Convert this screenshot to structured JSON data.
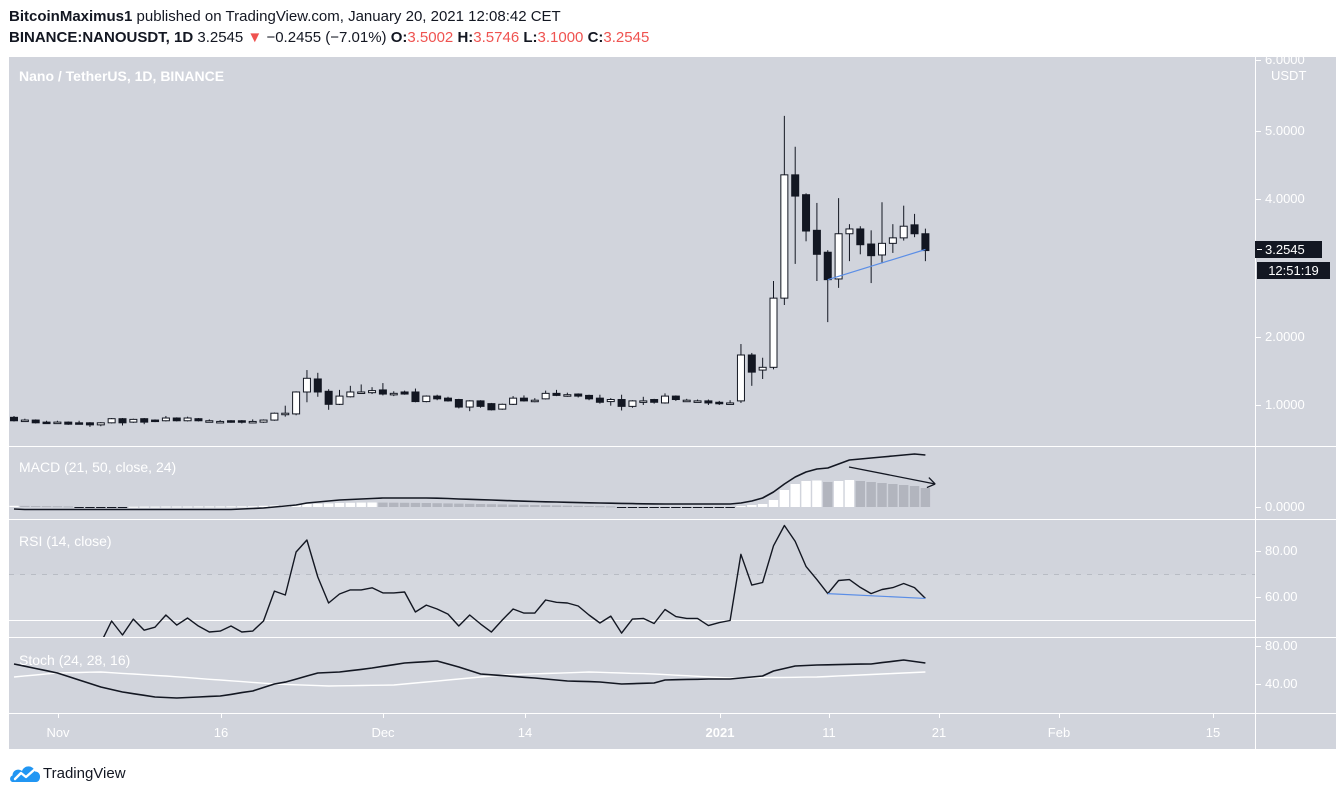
{
  "header": {
    "author": "BitcoinMaximus1",
    "published_text": "published on TradingView.com, January 20, 2021 12:08:42 CET",
    "symbol": "BINANCE:NANOUSDT, 1D",
    "last": "3.2545",
    "change_arrow": "▼",
    "change": "−0.2455 (−7.01%)",
    "ohlc": [
      {
        "label": "O:",
        "value": "3.5002"
      },
      {
        "label": "H:",
        "value": "3.5746"
      },
      {
        "label": "L:",
        "value": "3.1000"
      },
      {
        "label": "C:",
        "value": "3.2545"
      }
    ]
  },
  "chart": {
    "title": "Nano / TetherUS, 1D, BINANCE",
    "macd_title": "MACD (21, 50, close, 24)",
    "rsi_title": "RSI (14, close)",
    "stoch_title": "Stoch (24, 28, 16)",
    "price_axis": {
      "unit": "USDT",
      "ticks": [
        "6.0000",
        "5.0000",
        "4.0000",
        "2.0000",
        "1.0000"
      ],
      "last_price": "3.2545",
      "countdown": "12:51:19"
    },
    "macd_axis": {
      "ticks": [
        "0.0000"
      ]
    },
    "rsi_axis": {
      "ticks": [
        "80.00",
        "60.00"
      ]
    },
    "stoch_axis": {
      "ticks": [
        "80.00",
        "40.00"
      ]
    },
    "time_axis": [
      "Nov",
      "16",
      "Dec",
      "14",
      "2021",
      "11",
      "21",
      "Feb",
      "15"
    ]
  },
  "footer": {
    "brand": "TradingView"
  },
  "colors": {
    "background": "#d1d4dc",
    "candle_dark": "#131722",
    "candle_light": "#ffffff",
    "down": "#ef5350",
    "trendline_blue": "#5b8ee6",
    "logo_blue": "#2196f3"
  },
  "chart_data": {
    "type": "candlestick",
    "title": "Nano / TetherUS, 1D, BINANCE",
    "xlabel": "",
    "ylabel": "USDT",
    "x_first": "Oct 28, 2020",
    "x_last": "Jan 20, 2021",
    "ylim": [
      0.5,
      6.0
    ],
    "grid": false,
    "ohlc": [
      [
        0.82,
        0.84,
        0.76,
        0.77
      ],
      [
        0.78,
        0.8,
        0.76,
        0.78
      ],
      [
        0.78,
        0.79,
        0.73,
        0.74
      ],
      [
        0.75,
        0.77,
        0.74,
        0.745
      ],
      [
        0.75,
        0.77,
        0.73,
        0.75
      ],
      [
        0.75,
        0.76,
        0.71,
        0.72
      ],
      [
        0.74,
        0.77,
        0.72,
        0.73
      ],
      [
        0.74,
        0.75,
        0.68,
        0.71
      ],
      [
        0.71,
        0.75,
        0.69,
        0.74
      ],
      [
        0.74,
        0.81,
        0.73,
        0.8
      ],
      [
        0.8,
        0.81,
        0.7,
        0.74
      ],
      [
        0.75,
        0.8,
        0.74,
        0.79
      ],
      [
        0.8,
        0.81,
        0.72,
        0.75
      ],
      [
        0.78,
        0.79,
        0.75,
        0.76
      ],
      [
        0.77,
        0.84,
        0.76,
        0.81
      ],
      [
        0.81,
        0.82,
        0.76,
        0.77
      ],
      [
        0.77,
        0.83,
        0.76,
        0.81
      ],
      [
        0.8,
        0.81,
        0.76,
        0.77
      ],
      [
        0.77,
        0.79,
        0.75,
        0.77
      ],
      [
        0.76,
        0.78,
        0.75,
        0.76
      ],
      [
        0.77,
        0.78,
        0.74,
        0.75
      ],
      [
        0.77,
        0.78,
        0.73,
        0.75
      ],
      [
        0.76,
        0.79,
        0.74,
        0.76
      ],
      [
        0.75,
        0.79,
        0.74,
        0.78
      ],
      [
        0.78,
        0.89,
        0.77,
        0.88
      ],
      [
        0.87,
        0.99,
        0.83,
        0.88
      ],
      [
        0.87,
        1.2,
        0.85,
        1.19
      ],
      [
        1.19,
        1.51,
        1.04,
        1.39
      ],
      [
        1.38,
        1.47,
        1.12,
        1.19
      ],
      [
        1.2,
        1.23,
        0.93,
        1.01
      ],
      [
        1.01,
        1.22,
        1.0,
        1.13
      ],
      [
        1.12,
        1.28,
        1.11,
        1.19
      ],
      [
        1.19,
        1.3,
        1.17,
        1.19
      ],
      [
        1.18,
        1.26,
        1.16,
        1.21
      ],
      [
        1.22,
        1.32,
        1.14,
        1.16
      ],
      [
        1.17,
        1.2,
        1.13,
        1.17
      ],
      [
        1.19,
        1.21,
        1.15,
        1.16
      ],
      [
        1.19,
        1.24,
        1.04,
        1.05
      ],
      [
        1.05,
        1.14,
        1.04,
        1.13
      ],
      [
        1.13,
        1.15,
        1.07,
        1.09
      ],
      [
        1.1,
        1.12,
        1.05,
        1.06
      ],
      [
        1.08,
        1.09,
        0.95,
        0.97
      ],
      [
        0.97,
        1.07,
        0.91,
        1.06
      ],
      [
        1.06,
        1.07,
        0.96,
        0.98
      ],
      [
        1.02,
        1.03,
        0.92,
        0.93
      ],
      [
        0.94,
        1.02,
        0.93,
        1.01
      ],
      [
        1.01,
        1.13,
        1.0,
        1.1
      ],
      [
        1.1,
        1.14,
        1.05,
        1.06
      ],
      [
        1.07,
        1.1,
        1.04,
        1.07
      ],
      [
        1.09,
        1.21,
        1.08,
        1.17
      ],
      [
        1.17,
        1.22,
        1.13,
        1.14
      ],
      [
        1.15,
        1.18,
        1.12,
        1.15
      ],
      [
        1.16,
        1.17,
        1.11,
        1.13
      ],
      [
        1.14,
        1.15,
        1.07,
        1.09
      ],
      [
        1.1,
        1.15,
        1.02,
        1.04
      ],
      [
        1.05,
        1.1,
        0.99,
        1.08
      ],
      [
        1.08,
        1.15,
        0.92,
        0.98
      ],
      [
        0.98,
        1.07,
        0.96,
        1.06
      ],
      [
        1.06,
        1.12,
        1.0,
        1.06
      ],
      [
        1.08,
        1.09,
        1.02,
        1.04
      ],
      [
        1.03,
        1.17,
        1.02,
        1.13
      ],
      [
        1.13,
        1.14,
        1.06,
        1.08
      ],
      [
        1.07,
        1.09,
        1.05,
        1.07
      ],
      [
        1.06,
        1.08,
        1.04,
        1.06
      ],
      [
        1.06,
        1.08,
        1.0,
        1.03
      ],
      [
        1.04,
        1.06,
        1.0,
        1.02
      ],
      [
        1.02,
        1.07,
        1.01,
        1.03
      ],
      [
        1.06,
        1.89,
        1.03,
        1.73
      ],
      [
        1.73,
        1.76,
        1.28,
        1.48
      ],
      [
        1.51,
        1.69,
        1.38,
        1.55
      ],
      [
        1.55,
        2.81,
        1.52,
        2.56
      ],
      [
        2.56,
        5.22,
        2.46,
        4.36
      ],
      [
        4.36,
        4.77,
        3.06,
        4.05
      ],
      [
        4.07,
        4.09,
        3.39,
        3.54
      ],
      [
        3.55,
        3.95,
        2.81,
        3.2
      ],
      [
        3.23,
        3.26,
        2.21,
        2.83
      ],
      [
        2.84,
        4.02,
        2.71,
        3.5
      ],
      [
        3.5,
        3.64,
        3.1,
        3.57
      ],
      [
        3.57,
        3.61,
        3.2,
        3.34
      ],
      [
        3.35,
        3.55,
        2.78,
        3.18
      ],
      [
        3.19,
        3.96,
        3.07,
        3.36
      ],
      [
        3.36,
        3.64,
        3.22,
        3.44
      ],
      [
        3.44,
        3.91,
        3.4,
        3.61
      ],
      [
        3.63,
        3.79,
        3.45,
        3.5
      ],
      [
        3.5002,
        3.5746,
        3.1,
        3.2545
      ]
    ],
    "indicators": {
      "macd": {
        "params": "21, 50, close, 24",
        "zero_label": "0.0000",
        "macd": [
          -0.02,
          -0.025,
          -0.025,
          -0.025,
          -0.025,
          -0.025,
          -0.025,
          -0.025,
          -0.025,
          -0.025,
          -0.025,
          -0.025,
          -0.025,
          -0.025,
          -0.025,
          -0.025,
          -0.025,
          -0.025,
          -0.025,
          -0.025,
          -0.025,
          -0.02,
          -0.015,
          -0.01,
          0.0,
          0.01,
          0.02,
          0.04,
          0.05,
          0.06,
          0.07,
          0.075,
          0.08,
          0.085,
          0.09,
          0.09,
          0.09,
          0.09,
          0.09,
          0.088,
          0.085,
          0.08,
          0.077,
          0.073,
          0.07,
          0.066,
          0.062,
          0.058,
          0.055,
          0.052,
          0.05,
          0.047,
          0.044,
          0.042,
          0.04,
          0.038,
          0.036,
          0.034,
          0.032,
          0.031,
          0.03,
          0.03,
          0.03,
          0.03,
          0.03,
          0.03,
          0.03,
          0.04,
          0.06,
          0.09,
          0.15,
          0.23,
          0.3,
          0.35,
          0.38,
          0.39,
          0.43,
          0.47,
          0.48,
          0.49,
          0.5,
          0.51,
          0.52,
          0.53,
          0.52
        ],
        "histogram": [
          0.012,
          0.011,
          0.01,
          0.009,
          0.008,
          0.006,
          -0.006,
          -0.008,
          -0.008,
          -0.008,
          -0.006,
          0.003,
          0.004,
          0.004,
          0.005,
          0.005,
          0.005,
          0.006,
          0.006,
          0.006,
          0.007,
          0.007,
          0.008,
          0.012,
          0.016,
          0.02,
          0.025,
          0.03,
          0.033,
          0.036,
          0.04,
          0.042,
          0.044,
          0.045,
          0.044,
          0.043,
          0.042,
          0.041,
          0.04,
          0.038,
          0.036,
          0.034,
          0.032,
          0.03,
          0.028,
          0.026,
          0.024,
          0.022,
          0.02,
          0.018,
          0.016,
          0.014,
          0.012,
          0.01,
          0.008,
          0.006,
          -0.004,
          -0.006,
          -0.008,
          -0.009,
          -0.01,
          -0.01,
          -0.01,
          -0.01,
          -0.008,
          -0.008,
          -0.008,
          0.01,
          0.02,
          0.03,
          0.07,
          0.17,
          0.23,
          0.26,
          0.265,
          0.25,
          0.26,
          0.27,
          0.26,
          0.25,
          0.24,
          0.23,
          0.22,
          0.21,
          0.19
        ]
      },
      "rsi": {
        "params": "14, close",
        "upper_band": 70,
        "mid_line": 50,
        "values": [
          null,
          null,
          null,
          null,
          null,
          null,
          null,
          null,
          40.2,
          49.8,
          43.7,
          50.6,
          45.8,
          47.1,
          52.4,
          48.0,
          51.1,
          47.6,
          45.0,
          45.4,
          47.6,
          45.0,
          45.4,
          49.8,
          62.8,
          61.1,
          79.8,
          85.0,
          68.9,
          57.6,
          61.5,
          63.3,
          63.3,
          64.2,
          62.0,
          62.0,
          62.4,
          53.7,
          56.7,
          55.0,
          52.8,
          47.6,
          52.4,
          48.5,
          45.0,
          50.2,
          55.0,
          53.2,
          53.2,
          58.9,
          57.9,
          57.6,
          56.3,
          52.4,
          48.9,
          51.9,
          44.5,
          50.6,
          50.9,
          48.7,
          54.8,
          51.7,
          50.9,
          50.9,
          47.8,
          49.1,
          50.0,
          78.8,
          65.4,
          66.5,
          82.5,
          91.3,
          84.4,
          73.5,
          67.8,
          61.7,
          67.4,
          67.8,
          64.4,
          61.7,
          63.5,
          64.3,
          66.1,
          64.3,
          59.6
        ]
      },
      "stoch": {
        "params": "24, 28, 16",
        "k": [
          61.1,
          58.7,
          56.3,
          54.0,
          51.6,
          47.9,
          44.2,
          40.5,
          36.8,
          34.2,
          31.6,
          29.8,
          28.1,
          26.3,
          25.8,
          25.3,
          25.8,
          26.3,
          26.9,
          27.4,
          29.1,
          30.9,
          32.6,
          36.3,
          40.0,
          42.0,
          45.2,
          48.4,
          51.6,
          52.1,
          52.6,
          54.0,
          55.4,
          56.8,
          58.6,
          60.3,
          62.1,
          62.8,
          63.5,
          64.2,
          61.1,
          57.9,
          54.2,
          50.5,
          49.7,
          48.8,
          48.0,
          47.1,
          46.3,
          45.3,
          44.2,
          43.2,
          42.8,
          42.5,
          42.1,
          41.1,
          40.0,
          40.3,
          40.7,
          41.0,
          44.2,
          44.5,
          44.8,
          45.0,
          45.3,
          45.3,
          45.3,
          46.3,
          47.4,
          48.4,
          53.7,
          56.3,
          58.9,
          59.5,
          60.0,
          60.2,
          60.4,
          60.7,
          60.9,
          61.1,
          62.5,
          63.9,
          65.3,
          63.7,
          62.1
        ],
        "d": [
          47.4,
          48.5,
          49.5,
          50.6,
          51.6,
          51.9,
          52.1,
          52.4,
          52.6,
          51.9,
          51.2,
          50.5,
          49.8,
          49.1,
          48.4,
          47.6,
          46.7,
          45.9,
          45.0,
          44.2,
          43.4,
          42.5,
          41.7,
          40.8,
          40.0,
          39.6,
          39.2,
          38.7,
          38.3,
          37.9,
          38.1,
          38.2,
          38.4,
          38.6,
          38.7,
          38.9,
          40.0,
          41.0,
          42.1,
          43.1,
          44.2,
          45.3,
          46.3,
          47.4,
          48.4,
          49.5,
          49.9,
          50.3,
          50.7,
          51.0,
          51.4,
          51.8,
          52.2,
          52.6,
          52.3,
          51.9,
          51.6,
          51.2,
          50.9,
          50.5,
          49.9,
          49.3,
          48.7,
          48.1,
          47.5,
          46.9,
          46.3,
          46.4,
          46.6,
          46.7,
          46.8,
          47.0,
          47.1,
          47.3,
          47.4,
          47.9,
          48.5,
          49.0,
          49.5,
          50.0,
          50.5,
          51.1,
          51.6,
          52.1,
          52.6
        ]
      }
    },
    "annotations": [
      {
        "type": "trendline",
        "panel": "price",
        "color": "#5b8ee6",
        "from": [
          75,
          2.83
        ],
        "to": [
          84,
          3.27
        ]
      },
      {
        "type": "arrow",
        "panel": "macd",
        "color": "#131722",
        "from": [
          76.96,
          0.4
        ],
        "to": [
          84.9,
          0.23
        ]
      },
      {
        "type": "trendline",
        "panel": "rsi",
        "color": "#5b8ee6",
        "from": [
          75,
          61.7
        ],
        "to": [
          84,
          59.6
        ]
      }
    ]
  }
}
